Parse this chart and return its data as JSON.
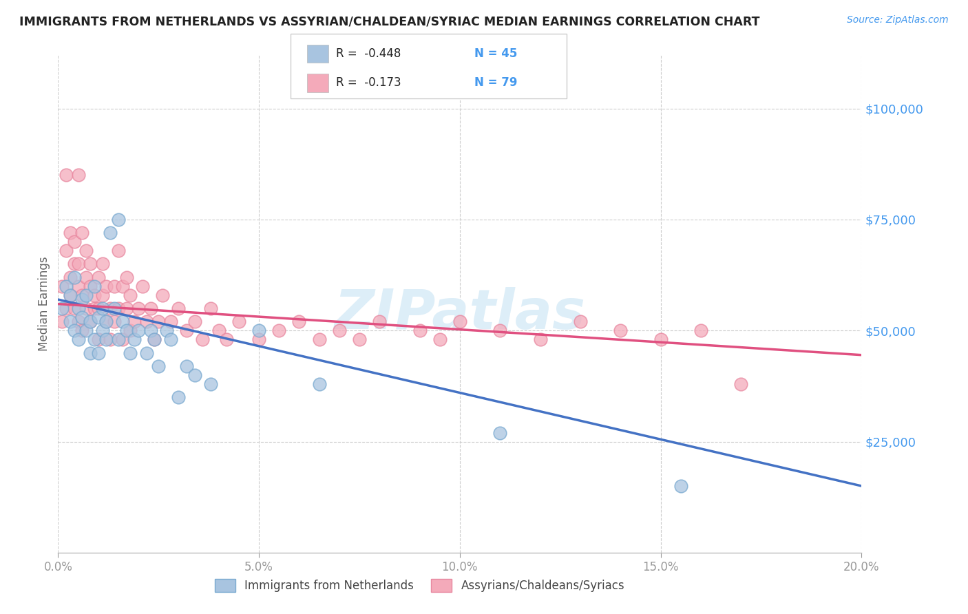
{
  "title": "IMMIGRANTS FROM NETHERLANDS VS ASSYRIAN/CHALDEAN/SYRIAC MEDIAN EARNINGS CORRELATION CHART",
  "source": "Source: ZipAtlas.com",
  "ylabel": "Median Earnings",
  "ytick_labels": [
    "$25,000",
    "$50,000",
    "$75,000",
    "$100,000"
  ],
  "ytick_values": [
    25000,
    50000,
    75000,
    100000
  ],
  "xlim": [
    0.0,
    0.2
  ],
  "ylim": [
    0,
    112000
  ],
  "blue_color": "#A8C4E0",
  "pink_color": "#F4AABA",
  "blue_edge_color": "#7aaad0",
  "pink_edge_color": "#e888a0",
  "blue_line_color": "#4472C4",
  "pink_line_color": "#E05080",
  "watermark": "ZIPatlas",
  "watermark_color": "#DDEEF8",
  "title_color": "#222222",
  "axis_label_color": "#666666",
  "ytick_color": "#4499EE",
  "legend_label1": "Immigrants from Netherlands",
  "legend_label2": "Assyrians/Chaldeans/Syriacs",
  "blue_trend_x0": 0.0,
  "blue_trend_y0": 57000,
  "blue_trend_x1": 0.2,
  "blue_trend_y1": 15000,
  "pink_trend_x0": 0.0,
  "pink_trend_y0": 56000,
  "pink_trend_x1": 0.2,
  "pink_trend_y1": 44500,
  "grid_color": "#CCCCCC",
  "background_color": "#FFFFFF",
  "blue_scatter_x": [
    0.001,
    0.002,
    0.003,
    0.003,
    0.004,
    0.004,
    0.005,
    0.005,
    0.006,
    0.006,
    0.007,
    0.007,
    0.008,
    0.008,
    0.009,
    0.009,
    0.01,
    0.01,
    0.011,
    0.011,
    0.012,
    0.012,
    0.013,
    0.014,
    0.015,
    0.015,
    0.016,
    0.017,
    0.018,
    0.019,
    0.02,
    0.022,
    0.023,
    0.024,
    0.025,
    0.027,
    0.028,
    0.03,
    0.032,
    0.034,
    0.038,
    0.05,
    0.065,
    0.11,
    0.155
  ],
  "blue_scatter_y": [
    55000,
    60000,
    52000,
    58000,
    50000,
    62000,
    48000,
    55000,
    53000,
    57000,
    50000,
    58000,
    45000,
    52000,
    48000,
    60000,
    53000,
    45000,
    50000,
    55000,
    48000,
    52000,
    72000,
    55000,
    48000,
    75000,
    52000,
    50000,
    45000,
    48000,
    50000,
    45000,
    50000,
    48000,
    42000,
    50000,
    48000,
    35000,
    42000,
    40000,
    38000,
    50000,
    38000,
    27000,
    15000
  ],
  "pink_scatter_x": [
    0.001,
    0.001,
    0.002,
    0.002,
    0.003,
    0.003,
    0.003,
    0.004,
    0.004,
    0.004,
    0.005,
    0.005,
    0.005,
    0.006,
    0.006,
    0.006,
    0.007,
    0.007,
    0.007,
    0.008,
    0.008,
    0.008,
    0.009,
    0.009,
    0.01,
    0.01,
    0.01,
    0.011,
    0.011,
    0.012,
    0.012,
    0.013,
    0.013,
    0.014,
    0.014,
    0.015,
    0.015,
    0.016,
    0.016,
    0.017,
    0.017,
    0.018,
    0.018,
    0.019,
    0.02,
    0.021,
    0.022,
    0.023,
    0.024,
    0.025,
    0.026,
    0.028,
    0.03,
    0.032,
    0.034,
    0.036,
    0.038,
    0.04,
    0.042,
    0.045,
    0.05,
    0.055,
    0.06,
    0.065,
    0.07,
    0.075,
    0.08,
    0.09,
    0.095,
    0.1,
    0.11,
    0.12,
    0.13,
    0.14,
    0.15,
    0.16,
    0.002,
    0.005,
    0.17
  ],
  "pink_scatter_y": [
    60000,
    52000,
    68000,
    55000,
    72000,
    58000,
    62000,
    65000,
    55000,
    70000,
    60000,
    52000,
    65000,
    58000,
    72000,
    50000,
    62000,
    55000,
    68000,
    60000,
    52000,
    65000,
    55000,
    58000,
    62000,
    48000,
    55000,
    58000,
    65000,
    52000,
    60000,
    55000,
    48000,
    60000,
    52000,
    68000,
    55000,
    60000,
    48000,
    55000,
    62000,
    50000,
    58000,
    52000,
    55000,
    60000,
    52000,
    55000,
    48000,
    52000,
    58000,
    52000,
    55000,
    50000,
    52000,
    48000,
    55000,
    50000,
    48000,
    52000,
    48000,
    50000,
    52000,
    48000,
    50000,
    48000,
    52000,
    50000,
    48000,
    52000,
    50000,
    48000,
    52000,
    50000,
    48000,
    50000,
    85000,
    85000,
    38000
  ]
}
